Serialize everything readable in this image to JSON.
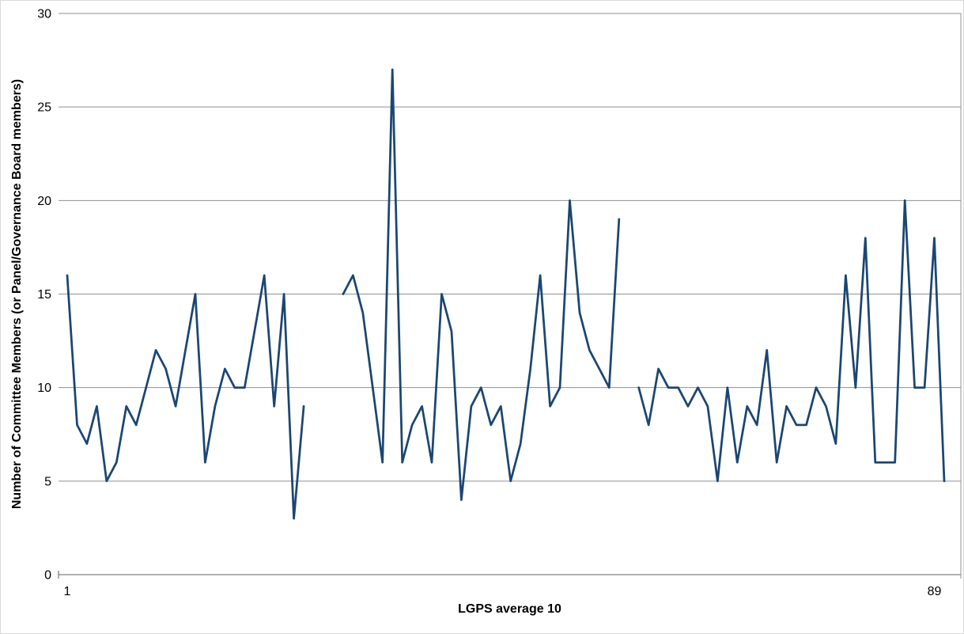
{
  "chart_data": {
    "type": "line",
    "title": "",
    "xlabel": "LGPS average 10",
    "ylabel": "Number of Committee Members (or Panel/Governance Board members)",
    "ylim": [
      0,
      30
    ],
    "y_ticks": [
      0,
      5,
      10,
      15,
      20,
      25,
      30
    ],
    "x_tick_labels": [
      {
        "category": 1,
        "label": "1"
      },
      {
        "category": 89,
        "label": "89"
      }
    ],
    "n_categories": 90,
    "grid": true,
    "legend_position": "none",
    "line_color": "#1B4672",
    "gridline_color": "#919191",
    "axis_color": "#808080",
    "series": [
      {
        "values": [
          16,
          8,
          7,
          9,
          5,
          6,
          9,
          8,
          10,
          12,
          11,
          9,
          12,
          15,
          6,
          9,
          11,
          10,
          10,
          13,
          16,
          9,
          15,
          3,
          9,
          null,
          null,
          null,
          15,
          16,
          14,
          10,
          6,
          27,
          6,
          8,
          9,
          6,
          15,
          13,
          4,
          9,
          10,
          8,
          9,
          5,
          7,
          11,
          16,
          9,
          10,
          20,
          14,
          12,
          11,
          10,
          19,
          null,
          10,
          8,
          11,
          10,
          10,
          9,
          10,
          9,
          5,
          10,
          6,
          9,
          8,
          12,
          6,
          9,
          8,
          8,
          10,
          9,
          7,
          16,
          10,
          18,
          6,
          6,
          6,
          20,
          10,
          10,
          18,
          5
        ]
      }
    ]
  }
}
